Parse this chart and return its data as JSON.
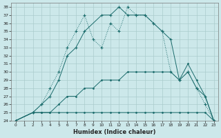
{
  "xlabel": "Humidex (Indice chaleur)",
  "background_color": "#cce8ea",
  "grid_color": "#aacccc",
  "line_color": "#1a6b6b",
  "xlim": [
    -0.5,
    23.5
  ],
  "ylim": [
    24,
    38.5
  ],
  "yticks": [
    24,
    25,
    26,
    27,
    28,
    29,
    30,
    31,
    32,
    33,
    34,
    35,
    36,
    37,
    38
  ],
  "xticks": [
    0,
    1,
    2,
    3,
    4,
    5,
    6,
    7,
    8,
    9,
    10,
    11,
    12,
    13,
    14,
    15,
    16,
    17,
    18,
    19,
    20,
    21,
    22,
    23
  ],
  "line_jagged_x": [
    0,
    2,
    3,
    4,
    5,
    6,
    7,
    8,
    9,
    10,
    11,
    12,
    13,
    14,
    15,
    16,
    17,
    18,
    19,
    20,
    21,
    22,
    23
  ],
  "line_jagged_y": [
    24,
    25,
    26,
    28,
    30,
    33,
    35,
    37,
    34,
    33,
    36,
    35,
    38,
    37,
    37,
    36,
    35,
    30,
    29,
    30,
    28,
    26,
    24
  ],
  "line_smooth_x": [
    0,
    2,
    3,
    4,
    5,
    6,
    7,
    8,
    10,
    11,
    12,
    13,
    14,
    15,
    16,
    17,
    18,
    19,
    20,
    21,
    22,
    23
  ],
  "line_smooth_y": [
    24,
    25,
    26,
    27,
    29,
    32,
    33,
    35,
    37,
    37,
    38,
    37,
    37,
    37,
    36,
    35,
    34,
    29,
    30,
    28,
    27,
    24
  ],
  "line_mid_x": [
    0,
    2,
    3,
    4,
    5,
    6,
    7,
    8,
    9,
    10,
    11,
    12,
    13,
    14,
    15,
    16,
    17,
    18,
    19,
    20,
    21,
    22,
    23
  ],
  "line_mid_y": [
    24,
    25,
    25,
    25,
    26,
    27,
    27,
    28,
    28,
    29,
    29,
    29,
    30,
    30,
    30,
    30,
    30,
    30,
    29,
    31,
    29,
    27,
    24
  ],
  "line_flat_x": [
    0,
    2,
    3,
    4,
    5,
    6,
    7,
    8,
    9,
    10,
    11,
    12,
    13,
    14,
    15,
    16,
    17,
    18,
    19,
    20,
    21,
    22,
    23
  ],
  "line_flat_y": [
    24,
    25,
    25,
    25,
    25,
    25,
    25,
    25,
    25,
    25,
    25,
    25,
    25,
    25,
    25,
    25,
    25,
    25,
    25,
    25,
    25,
    25,
    24
  ]
}
